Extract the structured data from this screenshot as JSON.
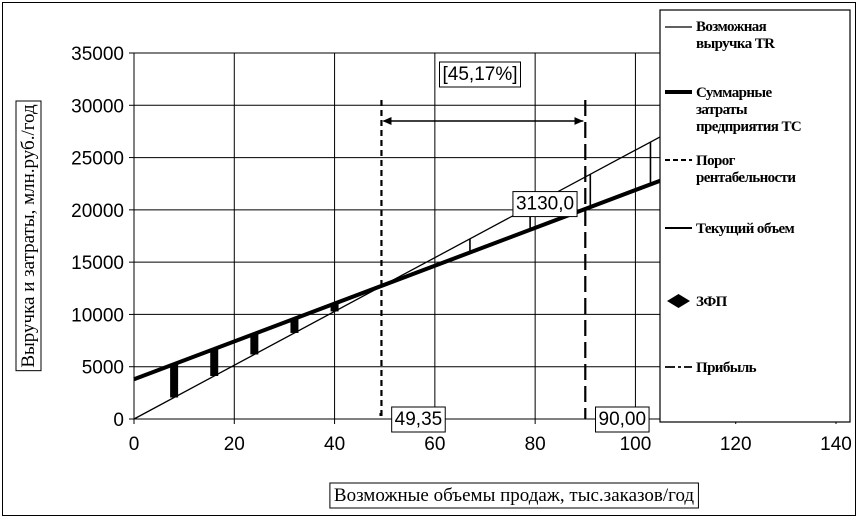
{
  "chart_data": {
    "type": "line",
    "xlabel": "Возможные объемы продаж, тыс.заказов/год",
    "ylabel": "Выручка и затраты, млн.руб./год",
    "xlim": [
      0,
      140
    ],
    "ylim": [
      0,
      35000
    ],
    "x_ticks": [
      "0",
      "20",
      "40",
      "60",
      "80",
      "100",
      "120",
      "140"
    ],
    "y_ticks": [
      "0",
      "5000",
      "10000",
      "15000",
      "20000",
      "25000",
      "30000",
      "35000"
    ],
    "grid": true,
    "legend_position": "right",
    "series": [
      {
        "name": "Возможная выручка TR",
        "style": "thin",
        "points": [
          [
            0,
            0
          ],
          [
            105,
            27000
          ]
        ]
      },
      {
        "name": "Суммарные затраты предприятия TC",
        "style": "thick",
        "points": [
          [
            0,
            3800
          ],
          [
            105,
            22800
          ]
        ]
      },
      {
        "name": "Порог рентабельности",
        "style": "short-dash",
        "x": 49.35
      },
      {
        "name": "Текущий объем",
        "style": "long-dash",
        "x": 90
      },
      {
        "name": "ЗФП",
        "style": "diamond",
        "points": []
      },
      {
        "name": "Прибыль",
        "style": "dash-dot",
        "points": []
      }
    ],
    "profit_bars_x": [
      8,
      16,
      24,
      32,
      40,
      67,
      79,
      91,
      103
    ],
    "annotations": {
      "breakeven_label": "49,35",
      "current_volume_label": "90,00",
      "safety_margin_label": "[45,17%]",
      "profit_label": "3130,0",
      "arrow_y": 28500,
      "profit_label_y": 20600
    },
    "legend_labels": {
      "tr": [
        "Возможная",
        "выручка TR"
      ],
      "tc": [
        "Суммарные",
        "затраты",
        "предприятия TC"
      ],
      "threshold": [
        "Порог",
        "рентабельности"
      ],
      "current": [
        "Текущий объем"
      ],
      "zfp": [
        "ЗФП"
      ],
      "profit": [
        "Прибыль"
      ]
    },
    "colors": {
      "line": "#000000",
      "grid": "#000000",
      "background": "#ffffff"
    }
  }
}
